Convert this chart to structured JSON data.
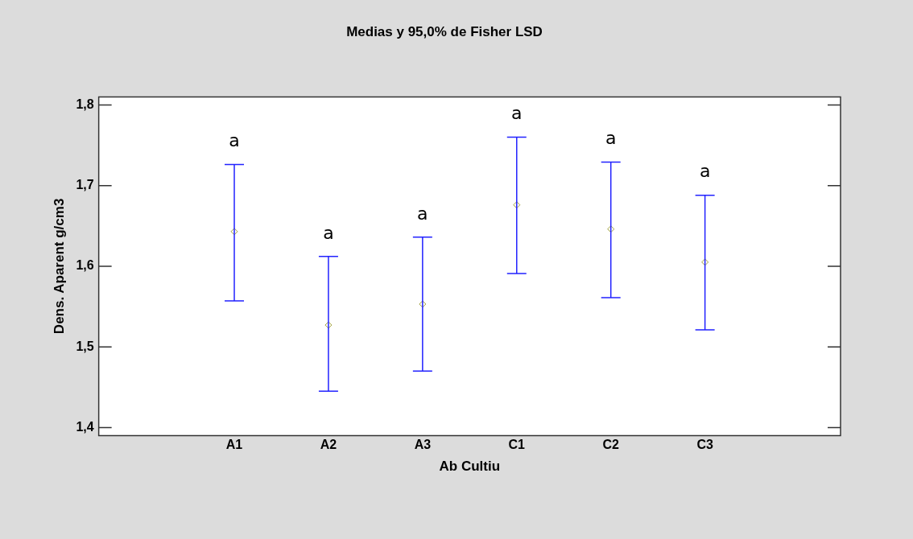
{
  "chart_data": {
    "type": "scatter",
    "title": "Medias y 95,0% de Fisher LSD",
    "xlabel": "Ab Cultiu",
    "ylabel": "Dens. Aparent g/cm3",
    "categories": [
      "A1",
      "A2",
      "A3",
      "C1",
      "C2",
      "C3"
    ],
    "series": [
      {
        "color": "#a0a040",
        "values": [
          1.643,
          1.527,
          1.553,
          1.676,
          1.646,
          1.605
        ],
        "errors": [
          [
            1.557,
            1.726
          ],
          [
            1.445,
            1.612
          ],
          [
            1.47,
            1.636
          ],
          [
            1.591,
            1.76
          ],
          [
            1.561,
            1.729
          ],
          [
            1.521,
            1.688
          ]
        ]
      }
    ],
    "ylim": [
      1.39,
      1.81
    ],
    "yticks": [
      {
        "value": 1.4,
        "label": "1,4"
      },
      {
        "value": 1.5,
        "label": "1,5"
      },
      {
        "value": 1.6,
        "label": "1,6"
      },
      {
        "value": 1.7,
        "label": "1,7"
      },
      {
        "value": 1.8,
        "label": "1,8"
      }
    ],
    "annotations": [
      "a",
      "a",
      "a",
      "a",
      "a",
      "a"
    ],
    "marker": "diamond",
    "grid": false,
    "legend": false
  }
}
